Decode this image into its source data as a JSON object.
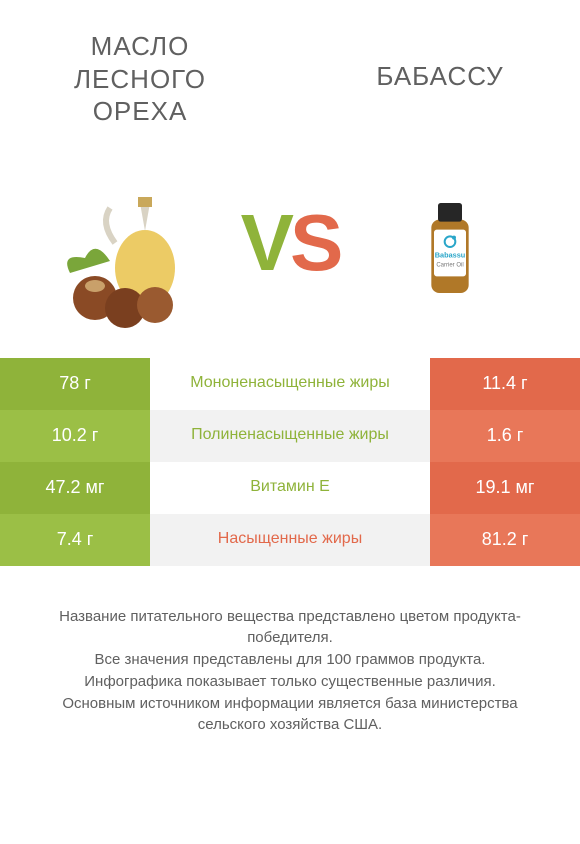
{
  "colors": {
    "left_a": "#8fb33a",
    "left_b": "#9bbf46",
    "right_a": "#e2694b",
    "right_b": "#e87759",
    "mid_bg_a": "#ffffff",
    "mid_bg_b": "#f2f2f2",
    "text_body": "#606060",
    "winner_left_text": "#8fb33a",
    "winner_right_text": "#e2694b"
  },
  "header": {
    "left_title": "МАСЛО ЛЕСНОГО ОРЕХА",
    "right_title": "БАБАССУ",
    "vs_v": "V",
    "vs_s": "S"
  },
  "product_images": {
    "left_alt": "hazelnut-oil",
    "right_alt": "babassu-oil-bottle",
    "right_label1": "Babassu",
    "right_label2": "Carrier Oil"
  },
  "table": {
    "type": "comparison-table",
    "rows": [
      {
        "left": "78 г",
        "mid": "Мононенасыщенные жиры",
        "right": "11.4 г",
        "winner": "left"
      },
      {
        "left": "10.2 г",
        "mid": "Полиненасыщенные жиры",
        "right": "1.6 г",
        "winner": "left"
      },
      {
        "left": "47.2 мг",
        "mid": "Витамин E",
        "right": "19.1 мг",
        "winner": "left"
      },
      {
        "left": "7.4 г",
        "mid": "Насыщенные жиры",
        "right": "81.2 г",
        "winner": "right"
      }
    ]
  },
  "footer": {
    "line1": "Название питательного вещества представлено цветом продукта-победителя.",
    "line2": "Все значения представлены для 100 граммов продукта.",
    "line3": "Инфографика показывает только существенные различия.",
    "line4": "Основным источником информации является база министерства сельского хозяйства США."
  }
}
